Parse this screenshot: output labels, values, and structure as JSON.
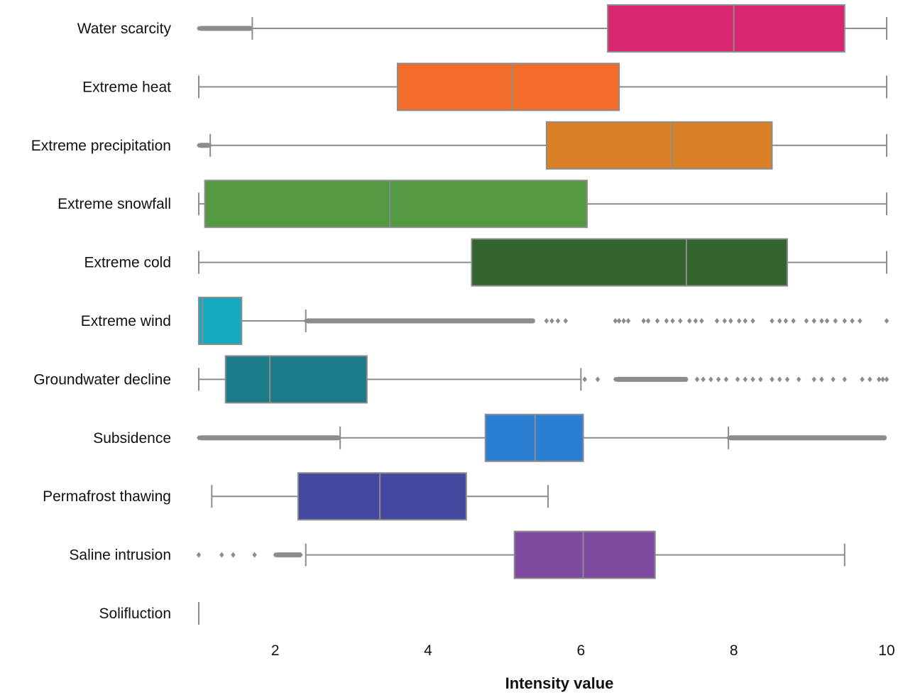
{
  "chart_data": {
    "type": "boxplot",
    "orientation": "horizontal",
    "title": "",
    "xlabel": "Intensity value",
    "ylabel": "",
    "xlim": [
      1,
      10
    ],
    "xticks": [
      2,
      4,
      6,
      8,
      10
    ],
    "grid": false,
    "legend": "none",
    "whisker_color": "#8c8c8c",
    "series": [
      {
        "name": "Water scarcity",
        "color": "#d92670",
        "whisker_low": 1.7,
        "q1": 6.35,
        "median": 8.0,
        "q3": 9.45,
        "whisker_high": 10.0,
        "outlier_ranges": [
          [
            1.0,
            1.7
          ]
        ],
        "outliers": []
      },
      {
        "name": "Extreme heat",
        "color": "#f26d2b",
        "whisker_low": 1.0,
        "q1": 3.6,
        "median": 5.1,
        "q3": 6.5,
        "whisker_high": 10.0,
        "outlier_ranges": [],
        "outliers": []
      },
      {
        "name": "Extreme precipitation",
        "color": "#d97f25",
        "whisker_low": 1.15,
        "q1": 5.55,
        "median": 7.2,
        "q3": 8.5,
        "whisker_high": 10.0,
        "outlier_ranges": [
          [
            1.0,
            1.15
          ]
        ],
        "outliers": []
      },
      {
        "name": "Extreme snowfall",
        "color": "#549a43",
        "whisker_low": 1.0,
        "q1": 1.08,
        "median": 3.5,
        "q3": 6.08,
        "whisker_high": 10.0,
        "outlier_ranges": [],
        "outliers": []
      },
      {
        "name": "Extreme cold",
        "color": "#33642e",
        "whisker_low": 1.0,
        "q1": 4.57,
        "median": 7.38,
        "q3": 8.7,
        "whisker_high": 10.0,
        "outlier_ranges": [],
        "outliers": []
      },
      {
        "name": "Extreme wind",
        "color": "#13a9bf",
        "whisker_low": 1.0,
        "q1": 1.0,
        "median": 1.05,
        "q3": 1.56,
        "whisker_high": 2.4,
        "outlier_ranges": [
          [
            2.4,
            5.4
          ]
        ],
        "outliers": [
          5.55,
          5.62,
          5.7,
          5.8,
          6.45,
          6.5,
          6.56,
          6.62,
          6.82,
          6.88,
          7.0,
          7.12,
          7.2,
          7.3,
          7.42,
          7.5,
          7.58,
          7.78,
          7.88,
          7.96,
          8.07,
          8.15,
          8.25,
          8.5,
          8.6,
          8.68,
          8.78,
          8.95,
          9.05,
          9.15,
          9.22,
          9.33,
          9.45,
          9.55,
          9.65,
          10.0
        ]
      },
      {
        "name": "Groundwater decline",
        "color": "#1b7b87",
        "whisker_low": 1.0,
        "q1": 1.35,
        "median": 1.93,
        "q3": 3.2,
        "whisker_high": 6.0,
        "outlier_ranges": [
          [
            6.45,
            7.4
          ]
        ],
        "outliers": [
          6.05,
          6.22,
          7.52,
          7.6,
          7.7,
          7.8,
          7.9,
          8.05,
          8.15,
          8.25,
          8.35,
          8.5,
          8.6,
          8.7,
          8.85,
          9.05,
          9.15,
          9.3,
          9.45,
          9.68,
          9.78,
          9.9,
          9.95,
          10.0
        ]
      },
      {
        "name": "Subsidence",
        "color": "#2a7fd2",
        "whisker_low": 2.85,
        "q1": 4.75,
        "median": 5.4,
        "q3": 6.03,
        "whisker_high": 7.93,
        "outlier_ranges": [
          [
            1.0,
            2.85
          ],
          [
            7.93,
            10.0
          ]
        ],
        "outliers": []
      },
      {
        "name": "Permafrost thawing",
        "color": "#44499f",
        "whisker_low": 1.17,
        "q1": 2.3,
        "median": 3.37,
        "q3": 4.5,
        "whisker_high": 5.57,
        "outlier_ranges": [],
        "outliers": []
      },
      {
        "name": "Saline intrusion",
        "color": "#7d4aa0",
        "whisker_low": 2.4,
        "q1": 5.13,
        "median": 6.03,
        "q3": 6.97,
        "whisker_high": 9.45,
        "outlier_ranges": [
          [
            2.0,
            2.35
          ]
        ],
        "outliers": [
          1.0,
          1.3,
          1.45,
          1.73
        ]
      },
      {
        "name": "Solifluction",
        "color": "#8c8c8c",
        "whisker_low": 1.0,
        "q1": 1.0,
        "median": 1.0,
        "q3": 1.0,
        "whisker_high": 1.0,
        "outlier_ranges": [],
        "outliers": []
      }
    ]
  }
}
